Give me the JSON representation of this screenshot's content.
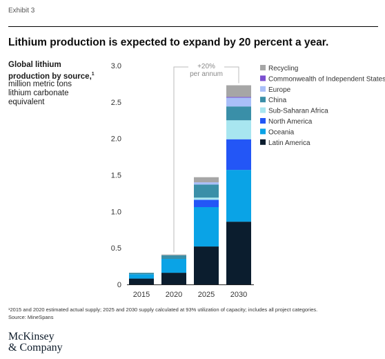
{
  "header": {
    "exhibit": "Exhibit 3",
    "headline": "Lithium production is expected to expand by 20 percent a year."
  },
  "ylabel": {
    "bold": "Global lithium production by source,",
    "footnote_mark": "1",
    "sub": "million metric tons lithium carbonate equivalent"
  },
  "footer": {
    "footnote": "¹2015 and 2020 estimated actual supply; 2025 and 2030 supply calculated at 93% utilization of capacity; includes all project categories.",
    "source": "Source: MineSpans",
    "logo_line1": "McKinsey",
    "logo_line2": "& Company"
  },
  "chart_data": {
    "type": "bar",
    "stacked": true,
    "categories": [
      "2015",
      "2020",
      "2025",
      "2030"
    ],
    "ylim": [
      0,
      3.0
    ],
    "yticks": [
      "0",
      "0.5",
      "1.0",
      "1.5",
      "2.0",
      "2.5",
      "3.0"
    ],
    "annotation": {
      "line1": "+20%",
      "line2": "per annum"
    },
    "legend_position": "right",
    "series": [
      {
        "name": "Latin America",
        "color": "#0b1d2e",
        "values": [
          0.08,
          0.16,
          0.52,
          0.86
        ]
      },
      {
        "name": "Oceania",
        "color": "#0aa3e6",
        "values": [
          0.06,
          0.19,
          0.54,
          0.71
        ]
      },
      {
        "name": "North America",
        "color": "#2356f6",
        "values": [
          0.0,
          0.0,
          0.1,
          0.42
        ]
      },
      {
        "name": "Sub-Saharan Africa",
        "color": "#a8e6f0",
        "values": [
          0.0,
          0.0,
          0.03,
          0.26
        ]
      },
      {
        "name": "China",
        "color": "#3a8fa8",
        "values": [
          0.02,
          0.05,
          0.18,
          0.19
        ]
      },
      {
        "name": "Europe",
        "color": "#a9bff8",
        "values": [
          0.0,
          0.0,
          0.03,
          0.12
        ]
      },
      {
        "name": "Commonwealth of Independent States",
        "color": "#7b4fd0",
        "values": [
          0.0,
          0.0,
          0.0,
          0.01
        ]
      },
      {
        "name": "Recycling",
        "color": "#a6a6a6",
        "values": [
          0.0,
          0.01,
          0.07,
          0.16
        ]
      }
    ]
  }
}
